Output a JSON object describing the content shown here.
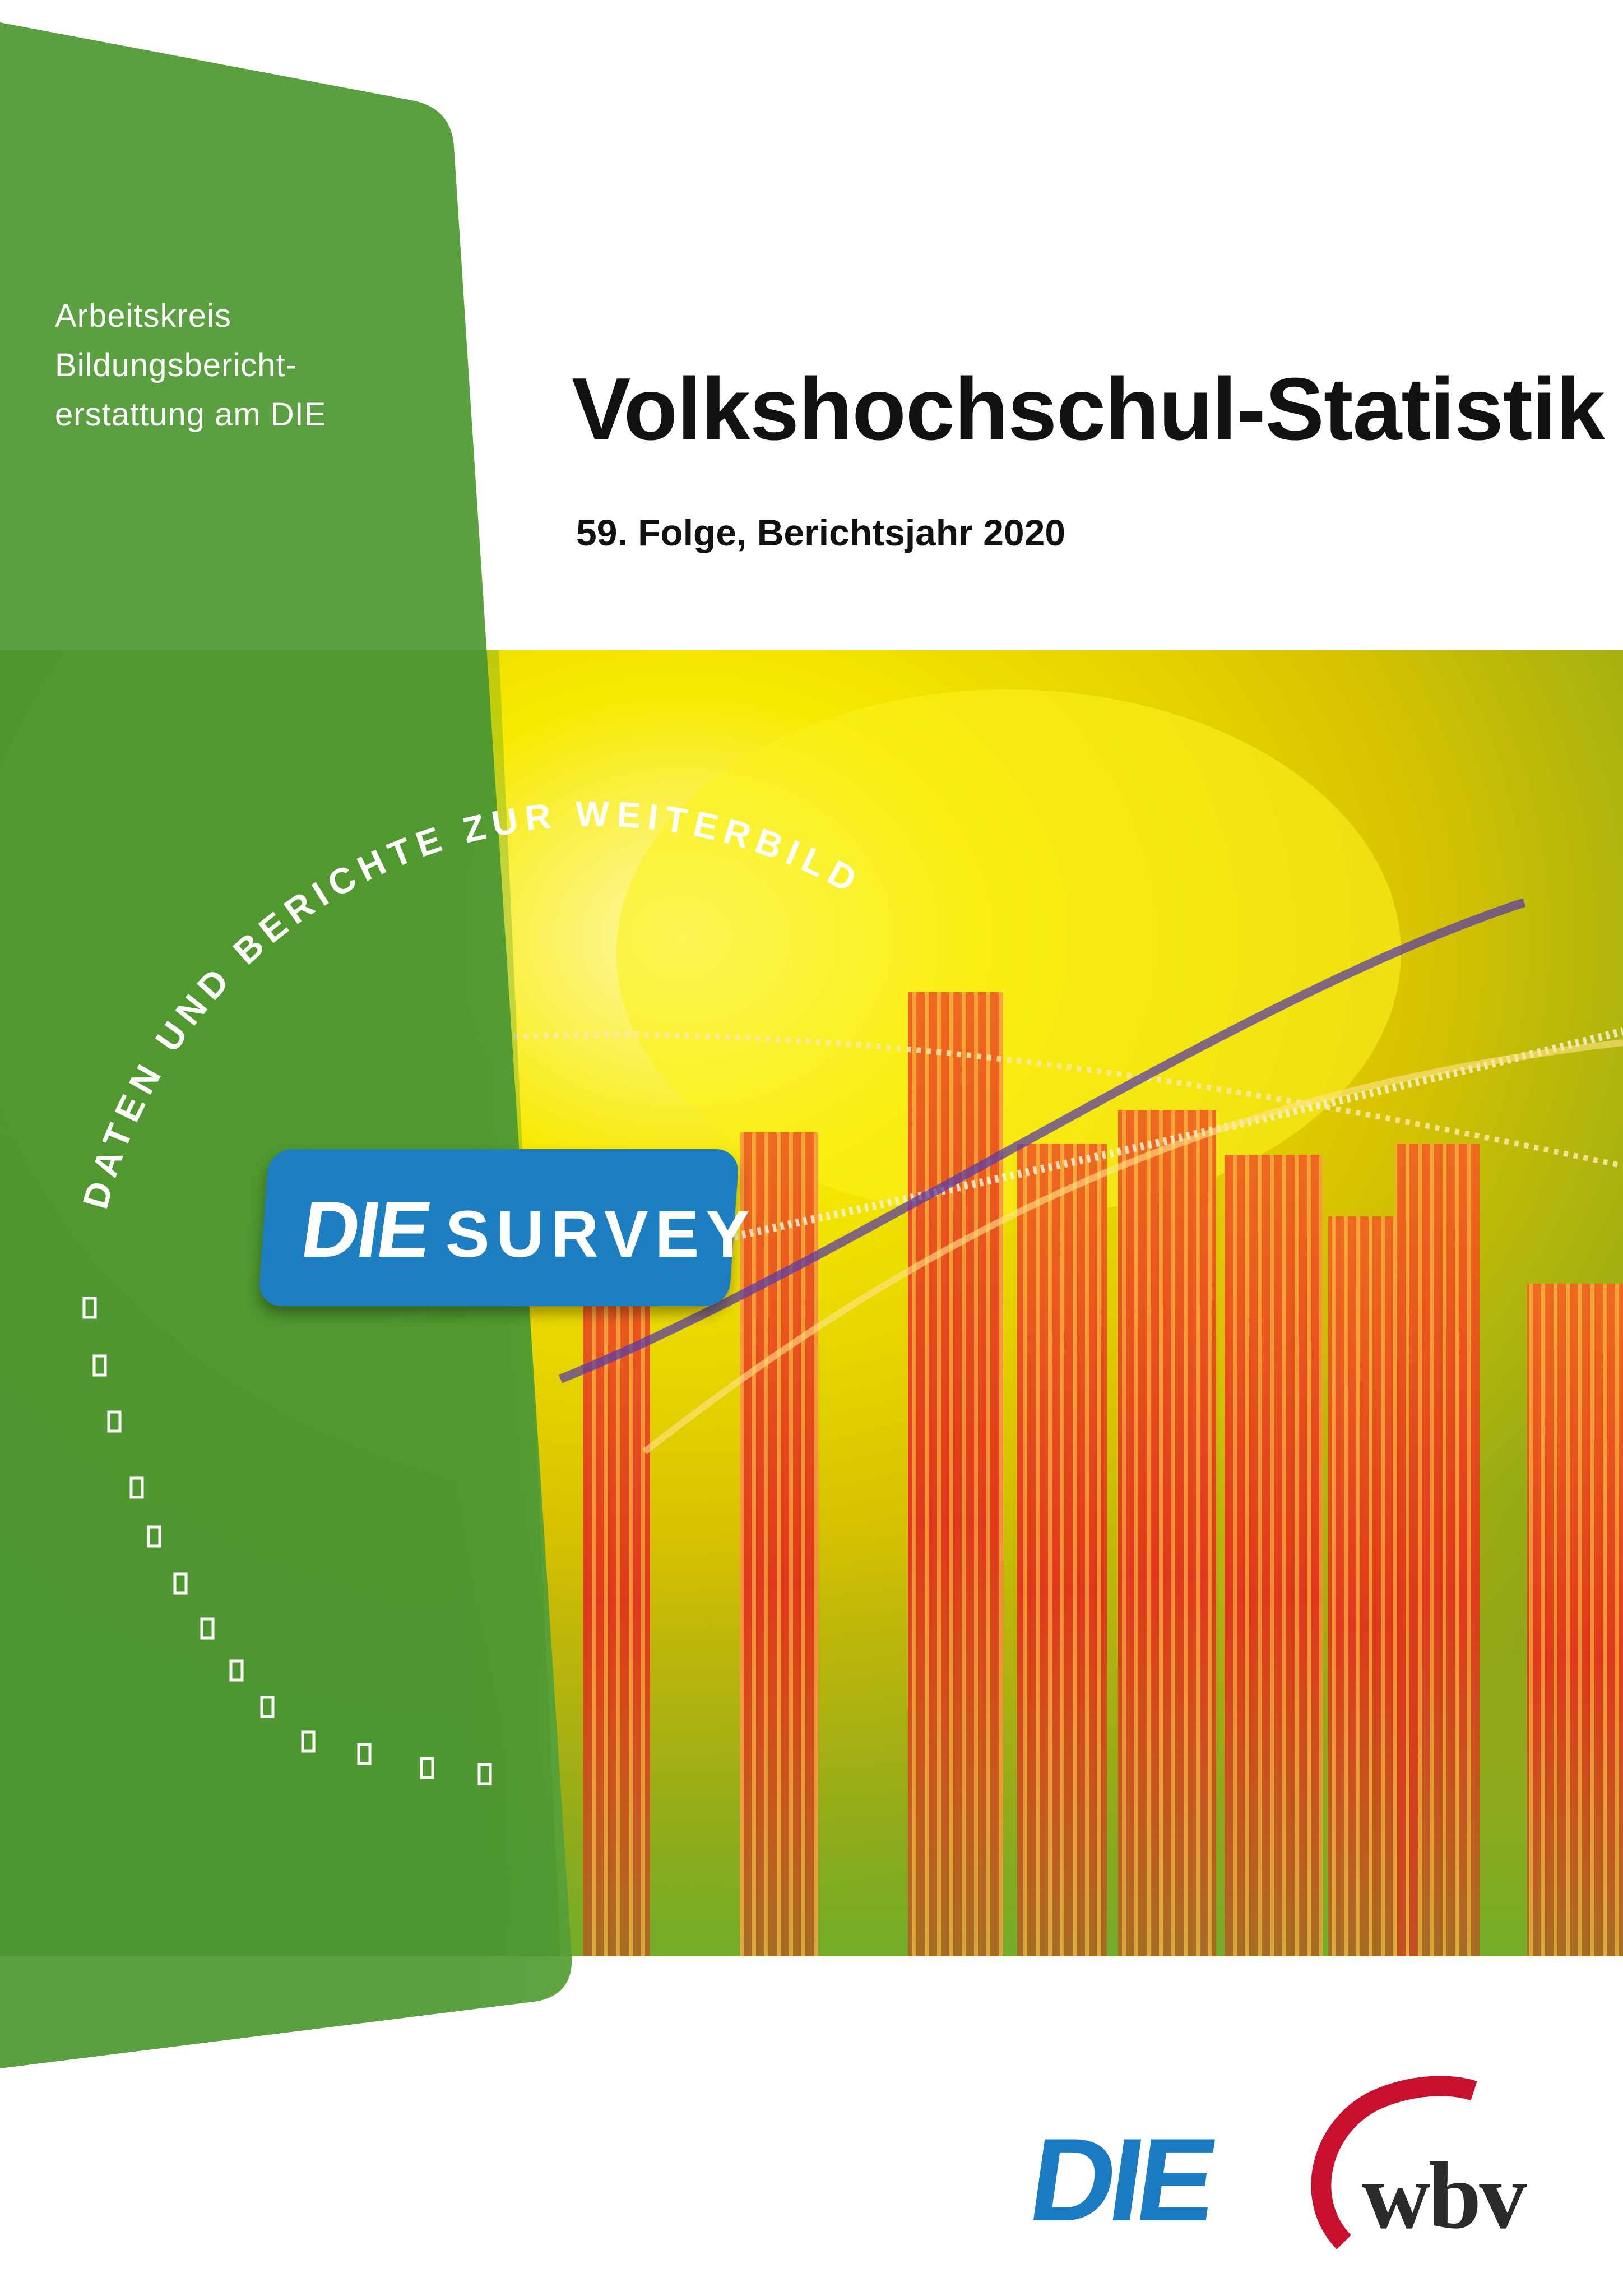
{
  "organization": {
    "lines": [
      "Arbeitskreis",
      "Bildungsbericht-",
      "erstattung am DIE"
    ]
  },
  "title": "Volkshochschul-Statistik",
  "subtitle": "59. Folge, Berichtsjahr 2020",
  "series_arc_text": "DATEN UND BERICHTE ZUR WEITERBILDUNG",
  "survey_badge": {
    "die": "DIE",
    "survey": "SURVEY"
  },
  "logos": {
    "die": "DIE",
    "wbv": "wbv"
  },
  "colors": {
    "panel_green": "#4f9a34",
    "badge_blue": "#1d7fc1",
    "die_blue": "#1c7cc3",
    "wbv_red": "#c8102e",
    "bar_orange": "#e8551e",
    "bg_yellow": "#f4e300"
  }
}
